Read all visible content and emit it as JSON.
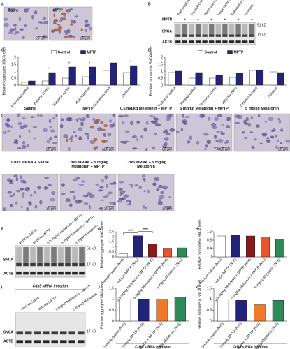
{
  "panel_labels": [
    "A",
    "B",
    "C",
    "D",
    "E",
    "F",
    "G",
    "H",
    "I",
    "J",
    "K"
  ],
  "micro_a": {
    "labels": [
      "Saline",
      "MPTP"
    ],
    "scale": "20 µm"
  },
  "blot_b": {
    "lanes": [
      "Prefrontal cortex",
      "Parietal cortex",
      "Temporal cortex",
      "Hippocampus",
      "Substantia nigra",
      "Striatum"
    ],
    "treatment_label": "MPTP",
    "treatment": [
      "-",
      "+",
      "-",
      "+",
      "-",
      "+",
      "-",
      "+",
      "-",
      "+",
      "-",
      "+"
    ],
    "bands": [
      "SNCA",
      "ACTB"
    ],
    "markers": [
      "51 kD",
      "17 kD"
    ]
  },
  "micro_e": {
    "labels": [
      "Saline",
      "MPTP",
      "0.5 mg/kg Melatonin + MPTP",
      "5 mg/kg Melatonin + MPTP",
      "5 mg/kg Melatonin",
      "Cdk5 siRNA + Saline",
      "Cdk5 siRNA + 5 mg/kg Melatonin + MPTP",
      "Cdk5 siRNA + 5 mg/kg Melatonin"
    ],
    "scale": "20 µm"
  },
  "blot_f": {
    "lanes": [
      "Vehicle-Saline",
      "Vehicle-MPTP",
      "0.5 mg/kg Melatonin + MPTP",
      "5 mg/kg Melatonin + MPTP",
      "5 mg/kg Melatonin"
    ],
    "bands": [
      "SNCA",
      "ACTB"
    ],
    "markers": [
      "51 kD",
      "17 kD"
    ]
  },
  "blot_i": {
    "title": "Cdk5 siRNA injection",
    "lanes": [
      "Vehicle-Saline",
      "Vehicle-MPTP",
      "5 mg/kg Melatonin + MPTP",
      "5 mg/kg Melatonin"
    ],
    "bands": [
      "SNCA",
      "ACTB"
    ],
    "markers": [
      "17 kD"
    ]
  },
  "chart_data": [
    {
      "type": "bar",
      "ylabel": "Relative aggregate SNCA level",
      "categories": [
        "Prefrontal cortex",
        "Parietal cortex",
        "Temporal cortex",
        "Hippocampus",
        "Substantia nigra",
        "Striatum"
      ],
      "series": [
        {
          "name": "Control",
          "color": "#ffffff",
          "values": [
            0.2,
            0.3,
            0.5,
            0.6,
            1.05,
            0.9
          ]
        },
        {
          "name": "MPTP",
          "color": "#23237a",
          "values": [
            0.3,
            0.9,
            1.3,
            1.3,
            1.6,
            1.4
          ]
        }
      ],
      "ylim": [
        0,
        2
      ],
      "yticks": [
        0,
        0.5,
        1,
        1.5,
        2
      ],
      "legend": "top",
      "annotations": [
        {
          "text": "*",
          "category": "Parietal cortex"
        },
        {
          "text": "*",
          "category": "Temporal cortex"
        },
        {
          "text": "*",
          "category": "Hippocampus"
        },
        {
          "text": "*",
          "category": "Substantia nigra"
        },
        {
          "text": "*",
          "category": "Striatum"
        }
      ]
    },
    {
      "type": "bar",
      "ylabel": "Relative monomeric SNCA level",
      "categories": [
        "Prefrontal cortex",
        "Parietal cortex",
        "Temporal cortex",
        "Hippocampus",
        "Substantia nigra",
        "Striatum"
      ],
      "series": [
        {
          "name": "Control",
          "color": "#ffffff",
          "values": [
            0.9,
            0.5,
            0.5,
            0.55,
            1.05,
            0.95
          ]
        },
        {
          "name": "MPTP",
          "color": "#23237a",
          "values": [
            1.0,
            0.9,
            0.7,
            0.85,
            1.05,
            0.9
          ]
        }
      ],
      "ylim": [
        0,
        2
      ],
      "yticks": [
        0,
        0.5,
        1,
        1.5,
        2
      ],
      "legend": "top"
    },
    {
      "type": "bar",
      "ylabel": "Relative aggregate SNCA level",
      "categories": [
        "Vehicle-Saline (N=6)",
        "Vehicle-MPTP (N=6)",
        "0.5 mg/kg Melatonin + MPTP (N=6)",
        "5 mg/kg Melatonin + MPTP (N=6)",
        "5 mg/kg Melatonin (N=6)"
      ],
      "values": [
        0.3,
        2.1,
        1.3,
        0.8,
        0.9
      ],
      "colors": [
        "#ffffff",
        "#23237a",
        "#8b1a1a",
        "#e8552a",
        "#2e8b57"
      ],
      "ylim": [
        0,
        2.5
      ],
      "yticks": [
        0,
        0.5,
        1,
        1.5,
        2,
        2.5
      ],
      "significance": [
        {
          "text": "****",
          "from": "Vehicle-Saline (N=6)",
          "to": "Vehicle-MPTP (N=6)"
        },
        {
          "text": "****",
          "from": "Vehicle-MPTP (N=6)",
          "to": "0.5 mg/kg Melatonin + MPTP (N=6)"
        }
      ]
    },
    {
      "type": "bar",
      "ylabel": "Relative monomeric SNCA level",
      "categories": [
        "Vehicle-Saline (N=6)",
        "Vehicle-MPTP (N=6)",
        "0.5 mg/kg Melatonin + MPTP (N=6)",
        "5 mg/kg Melatonin + MPTP (N=6)",
        "5 mg/kg Melatonin (N=6)"
      ],
      "values": [
        1.0,
        1.05,
        1.0,
        0.95,
        0.85
      ],
      "colors": [
        "#ffffff",
        "#23237a",
        "#8b1a1a",
        "#e8552a",
        "#2e8b57"
      ],
      "ylim": [
        0,
        1.2
      ],
      "yticks": [
        0,
        0.4,
        0.8,
        1.2
      ]
    },
    {
      "type": "bar",
      "ylabel": "Relative aggregate SNCA level",
      "xlabel": "Cdk5 siRNA injection",
      "categories": [
        "Vehicle-Saline (N=6)",
        "Vehicle-MPTP (N=6)",
        "5 mg/kg Melatonin + MPTP (N=6)",
        "5 mg/kg Melatonin (N=6)"
      ],
      "values": [
        1.0,
        1.0,
        1.0,
        1.1
      ],
      "colors": [
        "#ffffff",
        "#23237a",
        "#f07a2a",
        "#2e8b57"
      ],
      "ylim": [
        0,
        1.5
      ],
      "yticks": [
        0,
        0.5,
        1,
        1.5
      ]
    },
    {
      "type": "bar",
      "ylabel": "Relative monomeric SNCA level",
      "xlabel": "Cdk5 siRNA injection",
      "categories": [
        "Vehicle-Saline (N=6)",
        "Vehicle-MPTP (N=6)",
        "5 mg/kg Melatonin + MPTP (N=6)",
        "5 mg/kg Melatonin (N=6)"
      ],
      "values": [
        1.0,
        0.95,
        0.75,
        0.95
      ],
      "colors": [
        "#ffffff",
        "#23237a",
        "#f07a2a",
        "#2e8b57"
      ],
      "ylim": [
        0,
        1.5
      ],
      "yticks": [
        0,
        0.5,
        1,
        1.5
      ]
    }
  ]
}
